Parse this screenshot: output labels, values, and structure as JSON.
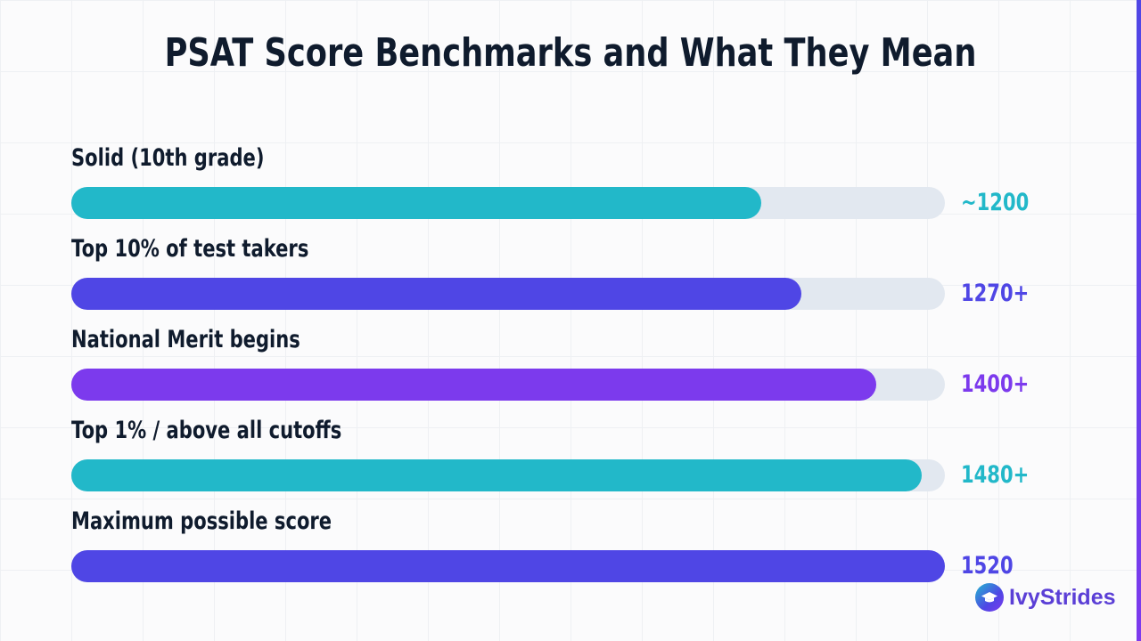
{
  "title": "PSAT Score Benchmarks and What They Mean",
  "brand": {
    "name": "IvyStrides",
    "icon": "graduation-cap-icon"
  },
  "colors": {
    "teal": "#22b8c9",
    "indigo": "#4f46e5",
    "purple": "#7c3aed",
    "track": "#e2e8f0",
    "text": "#0f1b2d"
  },
  "chart_data": {
    "type": "bar",
    "orientation": "horizontal",
    "title": "PSAT Score Benchmarks and What They Mean",
    "xlim": [
      0,
      1520
    ],
    "grid": false,
    "bars": [
      {
        "label": "Solid (10th grade)",
        "value_label": "~1200",
        "value": 1200,
        "color": "#22b8c9"
      },
      {
        "label": "Top 10% of test takers",
        "value_label": "1270+",
        "value": 1270,
        "color": "#4f46e5"
      },
      {
        "label": "National Merit begins",
        "value_label": "1400+",
        "value": 1400,
        "color": "#7c3aed"
      },
      {
        "label": "Top 1% / above all cutoffs",
        "value_label": "1480+",
        "value": 1480,
        "color": "#22b8c9"
      },
      {
        "label": "Maximum possible score",
        "value_label": "1520",
        "value": 1520,
        "color": "#4f46e5"
      }
    ]
  }
}
